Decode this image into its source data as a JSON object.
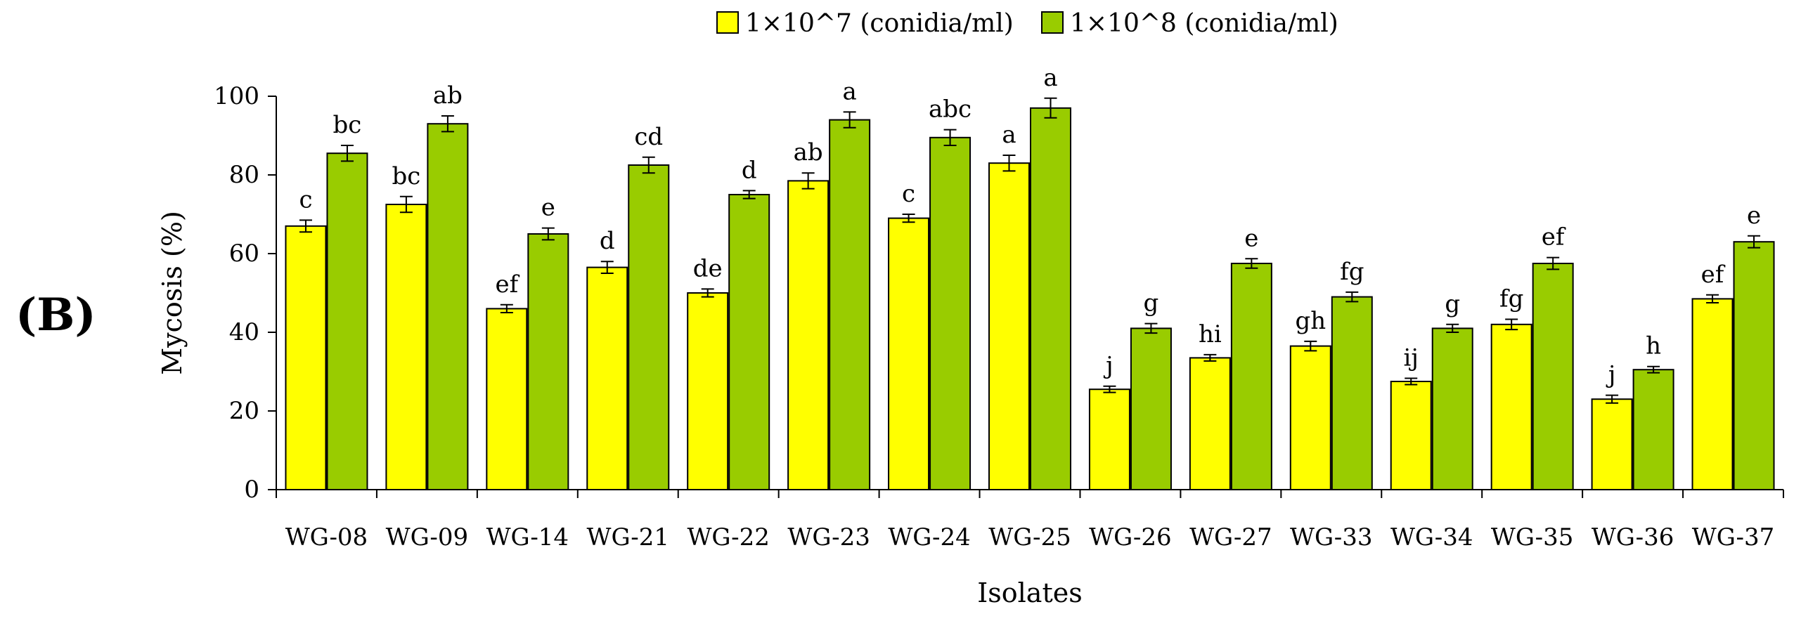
{
  "panel_label_open": "(",
  "panel_label_letter": "B",
  "panel_label_close": ")",
  "chart_data": {
    "type": "bar",
    "title": "",
    "xlabel": "Isolates",
    "ylabel": "Mycosis (%)",
    "ylim": [
      0,
      100
    ],
    "yticks": [
      0,
      20,
      40,
      60,
      80,
      100
    ],
    "legend_position": "top-center",
    "categories": [
      "WG-08",
      "WG-09",
      "WG-14",
      "WG-21",
      "WG-22",
      "WG-23",
      "WG-24",
      "WG-25",
      "WG-26",
      "WG-27",
      "WG-33",
      "WG-34",
      "WG-35",
      "WG-36",
      "WG-37"
    ],
    "series": [
      {
        "name": "1×10^7 (conidia/ml)",
        "color": "#ffff00",
        "values": [
          67,
          72.5,
          46,
          56.5,
          50,
          78.5,
          69,
          83,
          25.5,
          33.5,
          36.5,
          27.5,
          42,
          23,
          48.5
        ],
        "errors": [
          1.5,
          2.0,
          1.0,
          1.5,
          1.0,
          2.0,
          1.0,
          2.0,
          0.8,
          0.8,
          1.2,
          0.8,
          1.3,
          1.0,
          1.0
        ],
        "labels": [
          "c",
          "bc",
          "ef",
          "d",
          "de",
          "ab",
          "c",
          "a",
          "j",
          "hi",
          "gh",
          "ij",
          "fg",
          "j",
          "ef"
        ]
      },
      {
        "name": "1×10^8 (conidia/ml)",
        "color": "#99cc00",
        "values": [
          85.5,
          93,
          65,
          82.5,
          75,
          94,
          89.5,
          97,
          41,
          57.5,
          49,
          41,
          57.5,
          30.5,
          63
        ],
        "errors": [
          2.0,
          2.0,
          1.5,
          2.0,
          1.0,
          2.0,
          2.0,
          2.5,
          1.2,
          1.2,
          1.2,
          1.0,
          1.5,
          0.8,
          1.5
        ],
        "labels": [
          "bc",
          "ab",
          "e",
          "cd",
          "d",
          "a",
          "abc",
          "a",
          "g",
          "e",
          "fg",
          "g",
          "ef",
          "h",
          "e"
        ]
      }
    ]
  }
}
